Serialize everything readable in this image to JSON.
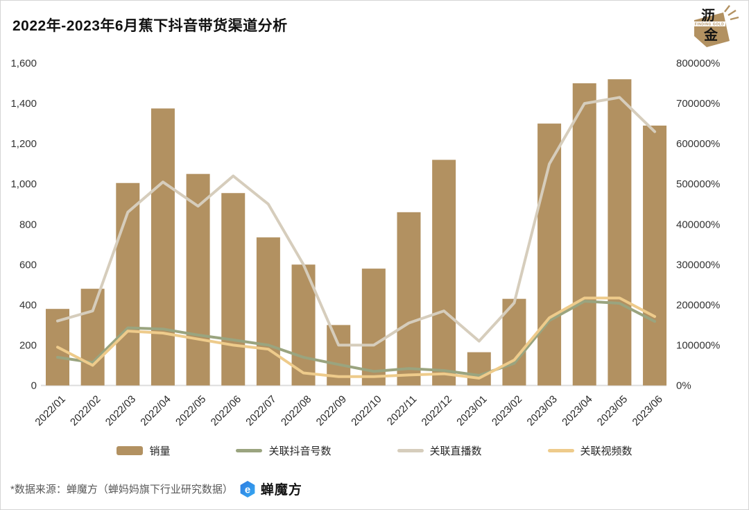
{
  "title": "2022年-2023年6月蕉下抖音带货渠道分析",
  "brand_badge": {
    "char_top": "沥",
    "char_bottom": "金",
    "subtext": "FINDING GOLD",
    "color": "#B29161"
  },
  "legend": [
    {
      "label": "销量",
      "type": "bar",
      "color": "#B29161"
    },
    {
      "label": "关联抖音号数",
      "type": "line",
      "color": "#9AA47F"
    },
    {
      "label": "关联直播数",
      "type": "line",
      "color": "#D6CDBC"
    },
    {
      "label": "关联视频数",
      "type": "line",
      "color": "#EECB8B"
    }
  ],
  "footer": {
    "source_note": "*数据来源：蝉魔方（蝉妈妈旗下行业研究数据）",
    "logo_text": "蝉魔方",
    "logo_color_dark": "#2F7BE0",
    "logo_color_light": "#36A9F2"
  },
  "colors": {
    "bar": "#B29161",
    "axis_text": "#333333",
    "baseline": "#DCDCDC"
  },
  "chart_data": {
    "type": "bar",
    "subtype": "combo bar + 3 lines, dual axis",
    "title": "2022年-2023年6月蕉下抖音带货渠道分析",
    "categories": [
      "2022/01",
      "2022/02",
      "2022/03",
      "2022/04",
      "2022/05",
      "2022/06",
      "2022/07",
      "2022/08",
      "2022/09",
      "2022/10",
      "2022/11",
      "2022/12",
      "2023/01",
      "2023/02",
      "2023/03",
      "2023/04",
      "2023/05",
      "2023/06"
    ],
    "left_axis": {
      "min": 0,
      "max": 1600,
      "step": 200,
      "labels": [
        "0",
        "200",
        "400",
        "600",
        "800",
        "1,000",
        "1,200",
        "1,400",
        "1,600"
      ]
    },
    "right_axis": {
      "min": 0,
      "max": 800000,
      "step": 100000,
      "labels": [
        "0%",
        "100000%",
        "200000%",
        "300000%",
        "400000%",
        "500000%",
        "600000%",
        "700000%",
        "800000%"
      ]
    },
    "grid": "off",
    "legend_position": "bottom",
    "series": [
      {
        "name": "销量",
        "type": "bar",
        "axis": "left",
        "color": "#B29161",
        "values": [
          380,
          480,
          1005,
          1375,
          1050,
          955,
          735,
          600,
          300,
          580,
          860,
          1120,
          165,
          430,
          1300,
          1500,
          1520,
          1290
        ]
      },
      {
        "name": "关联抖音号数",
        "type": "line",
        "axis": "right",
        "color": "#9AA47F",
        "values": [
          70000,
          57000,
          143000,
          140000,
          125000,
          113000,
          100000,
          70000,
          52000,
          35000,
          42000,
          37000,
          25000,
          55000,
          161000,
          209000,
          204000,
          159000
        ]
      },
      {
        "name": "关联直播数",
        "type": "line",
        "axis": "right",
        "color": "#D6CDBC",
        "values": [
          160000,
          185000,
          430000,
          505000,
          445000,
          520000,
          450000,
          300000,
          100000,
          100000,
          155000,
          185000,
          110000,
          205000,
          550000,
          700000,
          715000,
          630000
        ]
      },
      {
        "name": "关联视频数",
        "type": "line",
        "axis": "right",
        "color": "#EECB8B",
        "values": [
          95000,
          50000,
          135000,
          130000,
          115000,
          100000,
          90000,
          31000,
          22000,
          22000,
          26000,
          29000,
          18000,
          63000,
          168000,
          217000,
          217000,
          171000
        ]
      }
    ]
  }
}
